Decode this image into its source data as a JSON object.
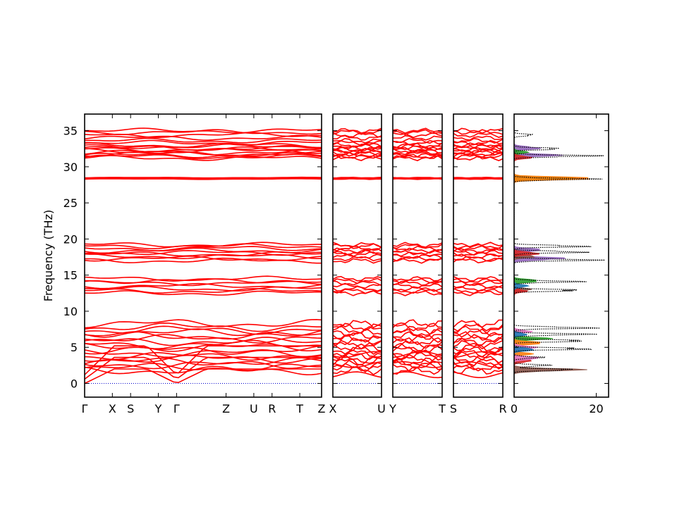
{
  "chart_data": {
    "type": "line",
    "ylabel": "Frequency (THz)",
    "ylim": [
      -1.9,
      37.3
    ],
    "yticks": [
      0,
      5,
      10,
      15,
      20,
      25,
      30,
      35
    ],
    "colors": {
      "bands": "#ff0000",
      "zero_line": "#0000cc",
      "dos_total": "#000000"
    },
    "panels": [
      {
        "id": "p1",
        "xticks": [
          "Γ",
          "X",
          "S",
          "Y",
          "Γ",
          "Z",
          "U",
          "R",
          "T",
          "Z"
        ],
        "xtick_pos": [
          0,
          0.117,
          0.194,
          0.311,
          0.388,
          0.597,
          0.714,
          0.791,
          0.908,
          1.0
        ]
      },
      {
        "id": "p2",
        "xticks": [
          "X",
          "U"
        ],
        "xtick_pos": [
          0,
          1
        ]
      },
      {
        "id": "p3",
        "xticks": [
          "Y",
          "T"
        ],
        "xtick_pos": [
          0,
          1
        ]
      },
      {
        "id": "p4",
        "xticks": [
          "S",
          "R"
        ],
        "xtick_pos": [
          0,
          1
        ]
      }
    ],
    "band_series": {
      "groups": [
        {
          "name": "high",
          "freqs": [
            31.2,
            31.4,
            31.6,
            31.8,
            32.0,
            32.2,
            32.4,
            32.6,
            32.8,
            33.0,
            33.3,
            33.6,
            34.0,
            34.4,
            34.8,
            35.0
          ]
        },
        {
          "name": "flat",
          "freqs": [
            28.3,
            28.4,
            28.5
          ]
        },
        {
          "name": "upper_mid",
          "freqs": [
            17.0,
            17.3,
            17.6,
            17.9,
            18.1,
            18.4,
            18.7,
            19.0,
            19.2
          ]
        },
        {
          "name": "mid",
          "freqs": [
            12.5,
            12.8,
            13.1,
            13.5,
            13.9,
            14.2,
            14.5
          ]
        },
        {
          "name": "low",
          "freqs": [
            0.0,
            0.6,
            1.2,
            1.8,
            2.2,
            2.6,
            3.0,
            3.4,
            3.8,
            4.2,
            4.6,
            5.0,
            5.4,
            5.8,
            6.2,
            6.6,
            7.0,
            7.4,
            7.8,
            8.3
          ]
        }
      ]
    },
    "dos": {
      "xticks": [
        0,
        20
      ],
      "xlim": [
        0,
        23
      ],
      "total_peaks": [
        {
          "freq": 1.9,
          "value": 17.5
        },
        {
          "freq": 2.5,
          "value": 10.0
        },
        {
          "freq": 3.6,
          "value": 8.0
        },
        {
          "freq": 4.8,
          "value": 23.0
        },
        {
          "freq": 5.9,
          "value": 22.0
        },
        {
          "freq": 6.8,
          "value": 21.0
        },
        {
          "freq": 7.7,
          "value": 22.0
        },
        {
          "freq": 12.9,
          "value": 20.0
        },
        {
          "freq": 14.1,
          "value": 18.0
        },
        {
          "freq": 17.1,
          "value": 23.0
        },
        {
          "freq": 18.2,
          "value": 20.0
        },
        {
          "freq": 19.0,
          "value": 21.0
        },
        {
          "freq": 28.3,
          "value": 22.0
        },
        {
          "freq": 31.5,
          "value": 23.0
        },
        {
          "freq": 32.5,
          "value": 14.0
        },
        {
          "freq": 34.4,
          "value": 5.5
        }
      ],
      "partials": [
        {
          "color": "#9467bd",
          "peaks": [
            [
              17.3,
              12
            ],
            [
              18.5,
              7
            ],
            [
              31.6,
              10
            ],
            [
              32.6,
              6
            ]
          ]
        },
        {
          "color": "#8c564b",
          "peaks": [
            [
              1.9,
              15
            ],
            [
              13.0,
              4
            ],
            [
              17.6,
              5
            ]
          ]
        },
        {
          "color": "#2ca02c",
          "peaks": [
            [
              6.2,
              8
            ],
            [
              14.2,
              6
            ],
            [
              28.4,
              16
            ],
            [
              32.0,
              3
            ]
          ]
        },
        {
          "color": "#d62728",
          "peaks": [
            [
              3.1,
              4
            ],
            [
              12.8,
              3
            ],
            [
              18.0,
              6
            ],
            [
              31.3,
              4
            ]
          ]
        },
        {
          "color": "#ff7f0e",
          "peaks": [
            [
              5.6,
              7
            ],
            [
              28.4,
              20
            ],
            [
              4.1,
              4
            ]
          ]
        },
        {
          "color": "#e377c2",
          "peaks": [
            [
              3.5,
              6
            ],
            [
              5.0,
              5
            ],
            [
              7.2,
              4
            ]
          ]
        },
        {
          "color": "#1f77b4",
          "peaks": [
            [
              4.7,
              5
            ],
            [
              6.8,
              3
            ],
            [
              13.5,
              3
            ]
          ]
        }
      ]
    }
  }
}
